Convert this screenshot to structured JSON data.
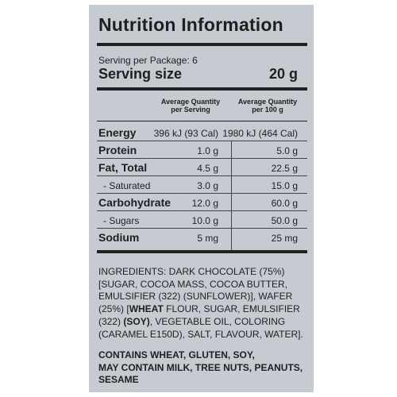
{
  "title": "Nutrition Information",
  "serving_per_package": "Serving per Package: 6",
  "serving_size_label": "Serving size",
  "serving_size_value": "20 g",
  "col_per_serving_line1": "Average Quantity",
  "col_per_serving_line2": "per Serving",
  "col_per_100g_line1": "Average Quantity",
  "col_per_100g_line2": "per 100 g",
  "rows": [
    {
      "label": "Energy",
      "per_serving": "396 kJ (93 Cal)",
      "per_100g": "1980 kJ (464 Cal)"
    },
    {
      "label": "Protein",
      "per_serving": "1.0 g",
      "per_100g": "5.0 g"
    },
    {
      "label": "Fat, Total",
      "per_serving": "4.5 g",
      "per_100g": "22.5 g"
    },
    {
      "label": "- Saturated",
      "per_serving": "3.0 g",
      "per_100g": "15.0 g"
    },
    {
      "label": "Carbohydrate",
      "per_serving": "12.0 g",
      "per_100g": "60.0 g"
    },
    {
      "label": "- Sugars",
      "per_serving": "10.0 g",
      "per_100g": "50.0 g"
    },
    {
      "label": "Sodium",
      "per_serving": "5 mg",
      "per_100g": "25 mg"
    }
  ],
  "ingredients": {
    "p1": "INGREDIENTS: DARK CHOCOLATE (75%) [SUGAR, COCOA MASS, COCOA BUTTER, EMULSIFIER (322) (SUNFLOWER)], WAFER (25%) [",
    "b1": "WHEAT",
    "p2": " FLOUR, SUGAR, EMULSIFIER (322) ",
    "b2": "(SOY)",
    "p3": ", VEGETABLE OIL, COLORING (CARAMEL E150D), SALT, FLAVOUR, WATER]."
  },
  "contains_line1": "CONTAINS WHEAT, GLUTEN, SOY,",
  "contains_line2": "MAY CONTAIN MILK, TREE NUTS, PEANUTS,",
  "contains_line3": "SESAME"
}
